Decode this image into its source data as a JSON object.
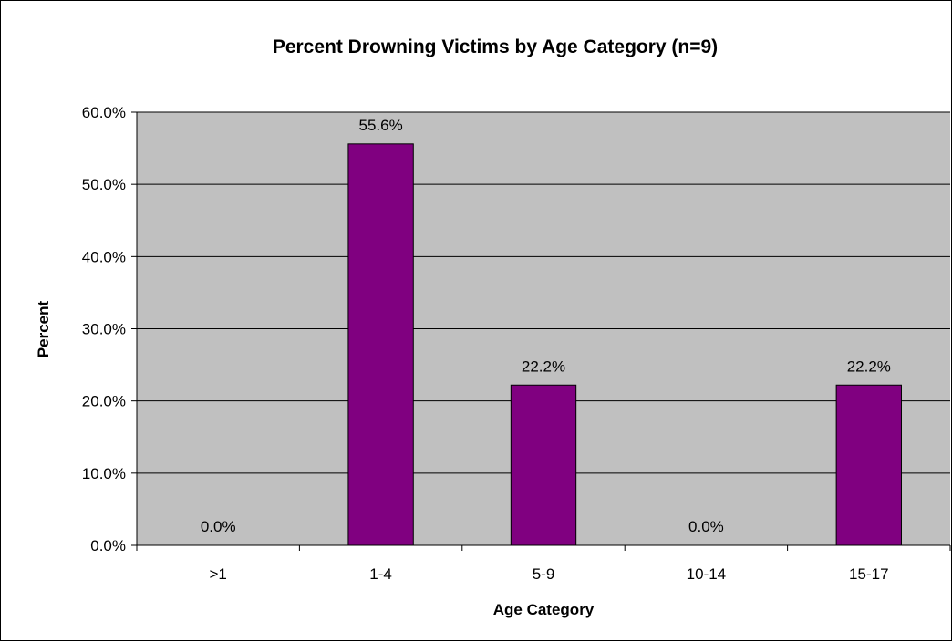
{
  "chart_data": {
    "type": "bar",
    "title": "Percent Drowning Victims by Age Category (n=9)",
    "xlabel": "Age Category",
    "ylabel": "Percent",
    "categories": [
      ">1",
      "1-4",
      "5-9",
      "10-14",
      "15-17"
    ],
    "values": [
      0.0,
      55.6,
      22.2,
      0.0,
      22.2
    ],
    "data_labels": [
      "0.0%",
      "55.6%",
      "22.2%",
      "0.0%",
      "22.2%"
    ],
    "ylim": [
      0,
      60
    ],
    "yticks": [
      0,
      10,
      20,
      30,
      40,
      50,
      60
    ],
    "ytick_labels": [
      "0.0%",
      "10.0%",
      "20.0%",
      "30.0%",
      "40.0%",
      "50.0%",
      "60.0%"
    ],
    "grid": true,
    "legend": "none",
    "colors": {
      "bar": "#800080",
      "plot_background": "#c0c0c0"
    }
  }
}
